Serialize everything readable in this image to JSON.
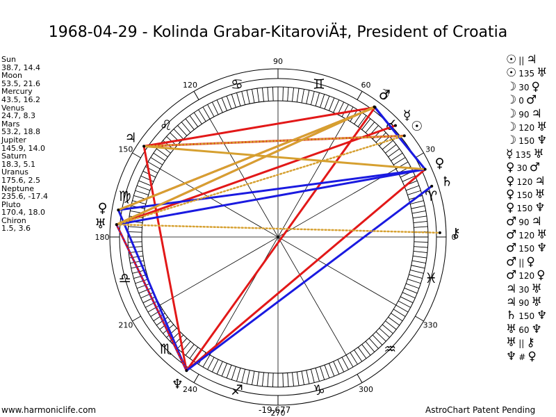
{
  "title": "1968-04-29 - Kolinda Grabar-KitaroviÄ‡, President of Croatia",
  "planets": [
    {
      "name": "Sun",
      "values": "38.7, 14.4",
      "symbol": "☉",
      "lon": 38.7,
      "color": "#000"
    },
    {
      "name": "Moon",
      "values": "53.5, 21.6",
      "symbol": "☽",
      "lon": 53.5,
      "color": "#000"
    },
    {
      "name": "Mercury",
      "values": "43.5, 16.2",
      "symbol": "☿",
      "lon": 43.5,
      "color": "#000"
    },
    {
      "name": "Venus",
      "values": "24.7, 8.3",
      "symbol": "♀",
      "lon": 24.7,
      "color": "#000"
    },
    {
      "name": "Mars",
      "values": "53.2, 18.8",
      "symbol": "♂",
      "lon": 53.2,
      "color": "#000"
    },
    {
      "name": "Jupiter",
      "values": "145.9, 14.0",
      "symbol": "♃",
      "lon": 145.9,
      "color": "#000"
    },
    {
      "name": "Saturn",
      "values": "18.3, 5.1",
      "symbol": "♄",
      "lon": 18.3,
      "color": "#000"
    },
    {
      "name": "Uranus",
      "values": "175.6, 2.5",
      "symbol": "♅",
      "lon": 175.6,
      "color": "#000"
    },
    {
      "name": "Neptune",
      "values": "235.6, -17.4",
      "symbol": "♆",
      "lon": 235.6,
      "color": "#000"
    },
    {
      "name": "Pluto",
      "values": "170.4, 18.0",
      "symbol": "♀",
      "lon": 170.4,
      "color": "#000"
    },
    {
      "name": "Chiron",
      "values": "1.5, 3.6",
      "symbol": "⚷",
      "lon": 1.5,
      "color": "#000"
    }
  ],
  "degree_labels": [
    {
      "deg": 0,
      "text": "0"
    },
    {
      "deg": 30,
      "text": "30"
    },
    {
      "deg": 60,
      "text": "60"
    },
    {
      "deg": 90,
      "text": "90"
    },
    {
      "deg": 120,
      "text": "120"
    },
    {
      "deg": 150,
      "text": "150"
    },
    {
      "deg": 180,
      "text": "180"
    },
    {
      "deg": 210,
      "text": "210"
    },
    {
      "deg": 240,
      "text": "240"
    },
    {
      "deg": 270,
      "text": "270"
    },
    {
      "deg": 300,
      "text": "300"
    },
    {
      "deg": 330,
      "text": "330"
    }
  ],
  "zodiac_signs": [
    {
      "symbol": "♈",
      "deg": 15
    },
    {
      "symbol": "♉",
      "deg": 45
    },
    {
      "symbol": "♊",
      "deg": 75
    },
    {
      "symbol": "♋",
      "deg": 105
    },
    {
      "symbol": "♌",
      "deg": 135
    },
    {
      "symbol": "♍",
      "deg": 165
    },
    {
      "symbol": "♎",
      "deg": 195
    },
    {
      "symbol": "♏",
      "deg": 225
    },
    {
      "symbol": "♐",
      "deg": 255
    },
    {
      "symbol": "♑",
      "deg": 285
    },
    {
      "symbol": "♒",
      "deg": 315
    },
    {
      "symbol": "♓",
      "deg": 345
    }
  ],
  "aspect_lines": [
    {
      "from": "Mars",
      "to": "Jupiter",
      "color": "#e21818",
      "style": "solid"
    },
    {
      "from": "Mars",
      "to": "Neptune",
      "color": "#e21818",
      "style": "solid"
    },
    {
      "from": "Mars",
      "to": "Pluto",
      "color": "#e21818",
      "style": "solid"
    },
    {
      "from": "Moon",
      "to": "Uranus",
      "color": "#e21818",
      "style": "solid"
    },
    {
      "from": "Sun",
      "to": "Jupiter",
      "color": "#e21818",
      "style": "solid"
    },
    {
      "from": "Jupiter",
      "to": "Neptune",
      "color": "#e21818",
      "style": "solid"
    },
    {
      "from": "Mercury",
      "to": "Uranus",
      "color": "#e21818",
      "style": "solid"
    },
    {
      "from": "Venus",
      "to": "Neptune",
      "color": "#e21818",
      "style": "solid"
    },
    {
      "from": "Moon",
      "to": "Venus",
      "color": "#1a1ae0",
      "style": "solid"
    },
    {
      "from": "Mars",
      "to": "Venus",
      "color": "#1a1ae0",
      "style": "solid"
    },
    {
      "from": "Uranus",
      "to": "Neptune",
      "color": "#1a1ae0",
      "style": "solid"
    },
    {
      "from": "Saturn",
      "to": "Neptune",
      "color": "#1a1ae0",
      "style": "solid"
    },
    {
      "from": "Venus",
      "to": "Pluto",
      "color": "#1a1ae0",
      "style": "solid"
    },
    {
      "from": "Venus",
      "to": "Uranus",
      "color": "#1a1ae0",
      "style": "solid"
    },
    {
      "from": "Pluto",
      "to": "Neptune",
      "color": "#1a1ae0",
      "style": "solid"
    },
    {
      "from": "Mars",
      "to": "Pluto",
      "color": "#d6a030",
      "style": "solid"
    },
    {
      "from": "Moon",
      "to": "Uranus",
      "color": "#d6a030",
      "style": "solid"
    },
    {
      "from": "Venus",
      "to": "Jupiter",
      "color": "#d6a030",
      "style": "solid"
    },
    {
      "from": "Sun",
      "to": "Uranus",
      "color": "#d6a030",
      "style": "dotted"
    },
    {
      "from": "Sun",
      "to": "Jupiter",
      "color": "#d6a030",
      "style": "dotted"
    },
    {
      "from": "Uranus",
      "to": "Chiron",
      "color": "#d6a030",
      "style": "dotted"
    },
    {
      "from": "Uranus",
      "to": "Neptune",
      "color": "#e21818",
      "style": "dotted"
    }
  ],
  "aspect_list": [
    {
      "p1": "☉",
      "asp": "||",
      "p2": "♃"
    },
    {
      "p1": "☉",
      "asp": "135",
      "p2": "♅"
    },
    {
      "p1": "☽",
      "asp": "30",
      "p2": "♀"
    },
    {
      "p1": "☽",
      "asp": "0",
      "p2": "♂"
    },
    {
      "p1": "☽",
      "asp": "90",
      "p2": "♃"
    },
    {
      "p1": "☽",
      "asp": "120",
      "p2": "♅"
    },
    {
      "p1": "☽",
      "asp": "150",
      "p2": "♆"
    },
    {
      "p1": "☿",
      "asp": "135",
      "p2": "♅"
    },
    {
      "p1": "♀",
      "asp": "30",
      "p2": "♂"
    },
    {
      "p1": "♀",
      "asp": "120",
      "p2": "♃"
    },
    {
      "p1": "♀",
      "asp": "150",
      "p2": "♅"
    },
    {
      "p1": "♀",
      "asp": "150",
      "p2": "♆"
    },
    {
      "p1": "♂",
      "asp": "90",
      "p2": "♃"
    },
    {
      "p1": "♂",
      "asp": "120",
      "p2": "♅"
    },
    {
      "p1": "♂",
      "asp": "150",
      "p2": "♆"
    },
    {
      "p1": "♂",
      "asp": "||",
      "p2": "♀"
    },
    {
      "p1": "♂",
      "asp": "120",
      "p2": "♀"
    },
    {
      "p1": "♃",
      "asp": "30",
      "p2": "♅"
    },
    {
      "p1": "♃",
      "asp": "90",
      "p2": "♅"
    },
    {
      "p1": "♄",
      "asp": "150",
      "p2": "♆"
    },
    {
      "p1": "♅",
      "asp": "60",
      "p2": "♆"
    },
    {
      "p1": "♅",
      "asp": "||",
      "p2": "⚷"
    },
    {
      "p1": "♆",
      "asp": "#",
      "p2": "♀"
    }
  ],
  "footer": {
    "left": "www.harmoniclife.com",
    "center": "-19,677",
    "right": "AstroChart Patent Pending"
  }
}
